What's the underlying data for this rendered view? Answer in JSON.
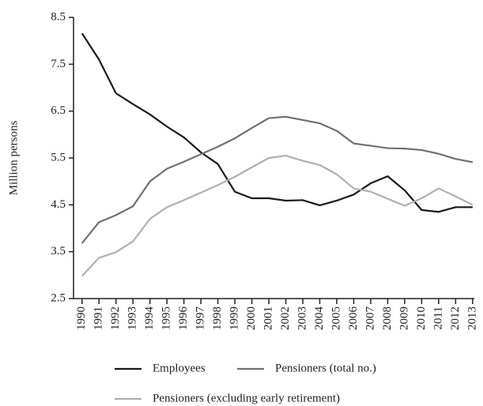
{
  "chart_data": {
    "type": "line",
    "y_label": "Million persons",
    "x": [
      1990,
      1991,
      1992,
      1993,
      1994,
      1995,
      1996,
      1997,
      1998,
      1999,
      2000,
      2001,
      2002,
      2003,
      2004,
      2005,
      2006,
      2007,
      2008,
      2009,
      2010,
      2011,
      2012,
      2013
    ],
    "xlim": [
      1989.5,
      2013.1
    ],
    "xticks": [
      1990,
      1991,
      1992,
      1993,
      1994,
      1995,
      1996,
      1997,
      1998,
      1999,
      2000,
      2001,
      2002,
      2003,
      2004,
      2005,
      2006,
      2007,
      2008,
      2009,
      2010,
      2011,
      2012,
      2013
    ],
    "ylim": [
      2.5,
      8.5
    ],
    "yticks": [
      2.5,
      3.5,
      4.5,
      5.5,
      6.5,
      7.5,
      8.5
    ],
    "series": [
      {
        "name": "Employees",
        "color": "#1a1a1a",
        "values": [
          8.16,
          7.6,
          6.88,
          6.65,
          6.43,
          6.17,
          5.94,
          5.62,
          5.37,
          4.78,
          4.64,
          4.64,
          4.59,
          4.6,
          4.49,
          4.59,
          4.72,
          4.96,
          5.11,
          4.81,
          4.39,
          4.35,
          4.45,
          4.45
        ]
      },
      {
        "name": "Pensioners (total no.)",
        "color": "#707070",
        "values": [
          3.68,
          4.13,
          4.28,
          4.47,
          5.0,
          5.27,
          5.42,
          5.58,
          5.74,
          5.92,
          6.14,
          6.35,
          6.38,
          6.31,
          6.24,
          6.08,
          5.81,
          5.76,
          5.71,
          5.7,
          5.67,
          5.59,
          5.48,
          5.41
        ]
      },
      {
        "name": "Pensioners (excluding early retirement)",
        "color": "#b0b0b0",
        "values": [
          2.98,
          3.37,
          3.49,
          3.72,
          4.2,
          4.45,
          4.6,
          4.76,
          4.92,
          5.1,
          5.3,
          5.5,
          5.55,
          5.44,
          5.35,
          5.15,
          4.85,
          4.78,
          4.63,
          4.48,
          4.64,
          4.85,
          4.68,
          4.5
        ]
      }
    ]
  }
}
